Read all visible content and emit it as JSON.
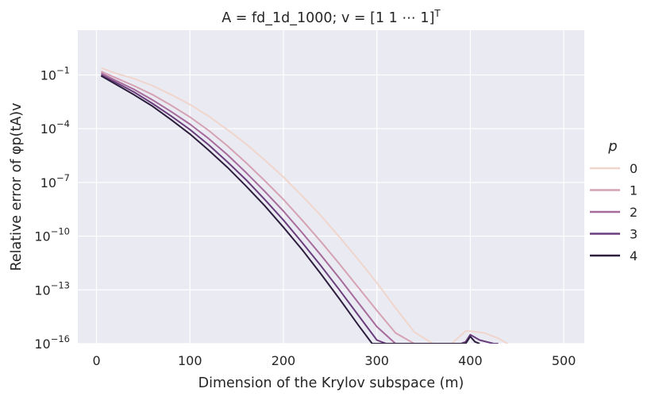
{
  "chart_data": {
    "type": "line",
    "title": "A = fd_1d_1000; v = [1 1 ⋯ 1]",
    "title_superscript": "T",
    "xlabel": "Dimension of the Krylov subspace (m)",
    "ylabel": "Relative error of φp(tA)v",
    "x_scale": "linear",
    "y_scale": "log",
    "xlim": [
      -20,
      522
    ],
    "ylim_exponent": [
      -16,
      1.5
    ],
    "x_ticks": [
      0,
      100,
      200,
      300,
      400,
      500
    ],
    "x_tick_labels": [
      "0",
      "100",
      "200",
      "300",
      "400",
      "500"
    ],
    "y_ticks_exponent": [
      -16,
      -13,
      -10,
      -7,
      -4,
      -1
    ],
    "y_tick_labels": [
      {
        "base": "10",
        "exp": "−16"
      },
      {
        "base": "10",
        "exp": "−13"
      },
      {
        "base": "10",
        "exp": "−10"
      },
      {
        "base": "10",
        "exp": "−7"
      },
      {
        "base": "10",
        "exp": "−4"
      },
      {
        "base": "10",
        "exp": "−1"
      }
    ],
    "grid": true,
    "background": "#eaeaf2",
    "legend": {
      "title": "p",
      "placement": "right"
    },
    "series": [
      {
        "name": "0",
        "color": "#f0d5cc",
        "x": [
          5,
          20,
          40,
          60,
          80,
          100,
          120,
          140,
          160,
          180,
          200,
          220,
          240,
          260,
          280,
          300,
          320,
          340,
          360,
          380,
          395,
          400,
          415,
          430,
          440
        ],
        "y_exp": [
          -0.6,
          -0.9,
          -1.2,
          -1.6,
          -2.1,
          -2.65,
          -3.3,
          -4.05,
          -4.85,
          -5.75,
          -6.7,
          -7.75,
          -8.85,
          -10.05,
          -11.3,
          -12.6,
          -14.0,
          -15.35,
          -16.0,
          -16.0,
          -15.3,
          -15.3,
          -15.4,
          -15.7,
          -16.0
        ]
      },
      {
        "name": "1",
        "color": "#d5a2b3",
        "x": [
          5,
          20,
          40,
          60,
          80,
          100,
          120,
          140,
          160,
          180,
          200,
          220,
          240,
          260,
          280,
          300,
          320,
          340,
          345
        ],
        "y_exp": [
          -0.8,
          -1.15,
          -1.6,
          -2.1,
          -2.7,
          -3.35,
          -4.1,
          -4.95,
          -5.9,
          -6.9,
          -7.95,
          -9.1,
          -10.3,
          -11.55,
          -12.85,
          -14.15,
          -15.4,
          -16.0,
          -16.0
        ]
      },
      {
        "name": "2",
        "color": "#a66b9b",
        "x": [
          5,
          20,
          40,
          60,
          80,
          100,
          120,
          140,
          160,
          180,
          200,
          220,
          240,
          260,
          280,
          300,
          320,
          325
        ],
        "y_exp": [
          -0.9,
          -1.3,
          -1.8,
          -2.4,
          -3.05,
          -3.75,
          -4.55,
          -5.45,
          -6.45,
          -7.5,
          -8.6,
          -9.8,
          -11.05,
          -12.35,
          -13.7,
          -15.05,
          -16.0,
          -16.0
        ]
      },
      {
        "name": "3",
        "color": "#6a3d7c",
        "x": [
          5,
          20,
          40,
          60,
          80,
          100,
          120,
          140,
          160,
          180,
          200,
          220,
          240,
          260,
          280,
          300,
          310,
          380,
          390,
          395,
          400,
          410,
          425,
          430
        ],
        "y_exp": [
          -1.0,
          -1.4,
          -1.95,
          -2.6,
          -3.3,
          -4.05,
          -4.9,
          -5.85,
          -6.85,
          -7.95,
          -9.1,
          -10.35,
          -11.65,
          -13.0,
          -14.4,
          -15.8,
          -16.0,
          -16.0,
          -16.0,
          -15.9,
          -15.5,
          -15.8,
          -16.0,
          -16.0
        ]
      },
      {
        "name": "4",
        "color": "#2d1e3e",
        "x": [
          5,
          20,
          40,
          60,
          80,
          100,
          120,
          140,
          160,
          180,
          200,
          220,
          240,
          260,
          280,
          295,
          300,
          395,
          400,
          405,
          410
        ],
        "y_exp": [
          -1.05,
          -1.5,
          -2.1,
          -2.75,
          -3.5,
          -4.3,
          -5.2,
          -6.15,
          -7.2,
          -8.3,
          -9.5,
          -10.75,
          -12.1,
          -13.5,
          -14.95,
          -16.0,
          -16.0,
          -16.0,
          -15.6,
          -15.9,
          -16.0
        ]
      }
    ]
  }
}
